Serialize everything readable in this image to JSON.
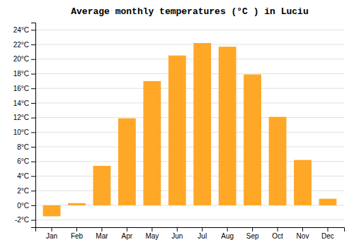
{
  "chart_data": {
    "type": "bar",
    "title": "Average monthly temperatures (°C ) in Luciu",
    "categories": [
      "Jan",
      "Feb",
      "Mar",
      "Apr",
      "May",
      "Jun",
      "Jul",
      "Aug",
      "Sep",
      "Oct",
      "Nov",
      "Dec"
    ],
    "values": [
      -1.5,
      0.3,
      5.4,
      11.9,
      17.0,
      20.5,
      22.2,
      21.7,
      17.9,
      12.1,
      6.2,
      0.9
    ],
    "color": "#FFA726",
    "ylim": [
      -3,
      25
    ],
    "yticks": [
      {
        "value": -2,
        "label": "-2°C"
      },
      {
        "value": 0,
        "label": "0°C"
      },
      {
        "value": 2,
        "label": "2°C"
      },
      {
        "value": 4,
        "label": "4°C"
      },
      {
        "value": 6,
        "label": "6°C"
      },
      {
        "value": 8,
        "label": "8°C"
      },
      {
        "value": 10,
        "label": "10°C"
      },
      {
        "value": 12,
        "label": "12°C"
      },
      {
        "value": 14,
        "label": "14°C"
      },
      {
        "value": 16,
        "label": "16°C"
      },
      {
        "value": 18,
        "label": "18°C"
      },
      {
        "value": 20,
        "label": "20°C"
      },
      {
        "value": 22,
        "label": "22°C"
      },
      {
        "value": 24,
        "label": "24°C"
      }
    ],
    "grid": true
  }
}
